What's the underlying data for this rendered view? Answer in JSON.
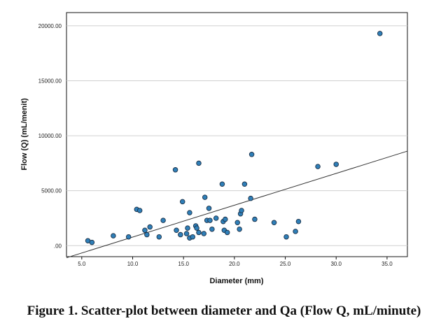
{
  "chart_data": {
    "type": "scatter",
    "xlabel": "Diameter (mm)",
    "ylabel": "Flow (Q) (mL/menit)",
    "xlim": [
      3.5,
      37.0
    ],
    "ylim": [
      -1000,
      21200
    ],
    "x_ticks": [
      5.0,
      10.0,
      15.0,
      20.0,
      25.0,
      30.0,
      35.0
    ],
    "x_tick_labels": [
      "5.0",
      "10.0",
      "15.0",
      "20.0",
      "25.0",
      "30.0",
      "35.0"
    ],
    "y_ticks": [
      0,
      5000,
      10000,
      15000,
      20000
    ],
    "y_tick_labels": [
      ".00",
      "5000.00",
      "10000.00",
      "15000.00",
      "20000.00"
    ],
    "grid": "horizontal",
    "point_color": "#2f7fb8",
    "fit_line": {
      "x": [
        3.5,
        37.0
      ],
      "y": [
        -1100,
        8600
      ]
    },
    "points": [
      {
        "x": 5.6,
        "y": 450
      },
      {
        "x": 6.0,
        "y": 300
      },
      {
        "x": 8.1,
        "y": 900
      },
      {
        "x": 9.6,
        "y": 800
      },
      {
        "x": 10.4,
        "y": 3300
      },
      {
        "x": 10.7,
        "y": 3200
      },
      {
        "x": 11.2,
        "y": 1400
      },
      {
        "x": 11.4,
        "y": 1000
      },
      {
        "x": 11.7,
        "y": 1700
      },
      {
        "x": 12.6,
        "y": 800
      },
      {
        "x": 13.0,
        "y": 2300
      },
      {
        "x": 14.2,
        "y": 6900
      },
      {
        "x": 14.3,
        "y": 1400
      },
      {
        "x": 14.7,
        "y": 1000
      },
      {
        "x": 14.9,
        "y": 4000
      },
      {
        "x": 15.3,
        "y": 1100
      },
      {
        "x": 15.4,
        "y": 1600
      },
      {
        "x": 15.6,
        "y": 3000
      },
      {
        "x": 15.6,
        "y": 700
      },
      {
        "x": 15.9,
        "y": 800
      },
      {
        "x": 16.2,
        "y": 1800
      },
      {
        "x": 16.3,
        "y": 1600
      },
      {
        "x": 16.5,
        "y": 7500
      },
      {
        "x": 16.5,
        "y": 1200
      },
      {
        "x": 17.0,
        "y": 1100
      },
      {
        "x": 17.1,
        "y": 4400
      },
      {
        "x": 17.3,
        "y": 2300
      },
      {
        "x": 17.5,
        "y": 3400
      },
      {
        "x": 17.6,
        "y": 2300
      },
      {
        "x": 17.8,
        "y": 1500
      },
      {
        "x": 18.2,
        "y": 2500
      },
      {
        "x": 18.8,
        "y": 5600
      },
      {
        "x": 18.9,
        "y": 2200
      },
      {
        "x": 19.0,
        "y": 1400
      },
      {
        "x": 19.1,
        "y": 2400
      },
      {
        "x": 19.3,
        "y": 1200
      },
      {
        "x": 20.3,
        "y": 2100
      },
      {
        "x": 20.5,
        "y": 1500
      },
      {
        "x": 20.6,
        "y": 2900
      },
      {
        "x": 20.7,
        "y": 3200
      },
      {
        "x": 21.0,
        "y": 5600
      },
      {
        "x": 21.6,
        "y": 4300
      },
      {
        "x": 21.7,
        "y": 8300
      },
      {
        "x": 22.0,
        "y": 2400
      },
      {
        "x": 23.9,
        "y": 2100
      },
      {
        "x": 25.1,
        "y": 800
      },
      {
        "x": 26.0,
        "y": 1300
      },
      {
        "x": 26.3,
        "y": 2200
      },
      {
        "x": 28.2,
        "y": 7200
      },
      {
        "x": 30.0,
        "y": 7400
      },
      {
        "x": 34.3,
        "y": 19300
      }
    ]
  },
  "caption": "Figure 1. Scatter-plot between diameter and Qa (Flow Q, mL/minute)"
}
